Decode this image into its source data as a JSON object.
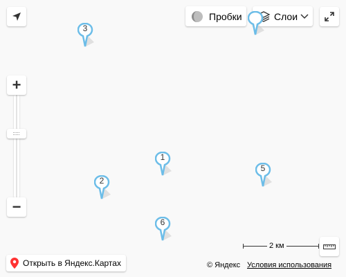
{
  "toolbar": {
    "traffic_label": "Пробки",
    "layers_label": "Слои",
    "geolocation_icon": "arrow-navigation-icon",
    "fullscreen_icon": "expand-arrows-icon",
    "traffic_icon": "traffic-circle-icon",
    "layers_icon": "layers-stack-icon"
  },
  "zoom": {
    "in_label": "+",
    "out_label": "−",
    "level": 0.6
  },
  "pins": [
    {
      "label": "3"
    },
    {
      "label": "1"
    },
    {
      "label": "2"
    },
    {
      "label": "5"
    },
    {
      "label": "6"
    }
  ],
  "scale": {
    "label": "2 км",
    "ruler_icon": "ruler-icon"
  },
  "open_link": {
    "label": "Открыть в Яндекс.Картах",
    "icon": "map-pin-icon"
  },
  "copyright": {
    "text": "© Яндекс",
    "terms_label": "Условия использования"
  },
  "colors": {
    "pin_stroke": "#6cbde8",
    "pin_red": "#ff3333",
    "background": "#f9f9f9"
  }
}
